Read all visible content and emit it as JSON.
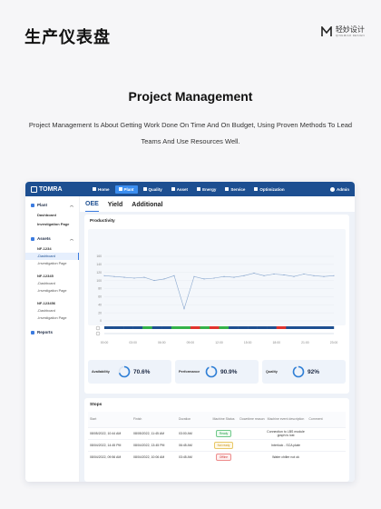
{
  "header": {
    "title": "生产仪表盘",
    "brand_cn": "轻妙设计",
    "brand_en": "QINGMIAO DESIGN"
  },
  "hero": {
    "heading": "Project Management",
    "description": "Project Management Is About Getting Work Done On Time And On Budget, Using Proven Methods To Lead Teams And Use Resources Well."
  },
  "app": {
    "logo": "TOMRA",
    "nav": [
      "Home",
      "Plant",
      "Quality",
      "Asset",
      "Energy",
      "Service",
      "Optimization"
    ],
    "active_nav": 1,
    "user": "Admin"
  },
  "sidebar": {
    "plant": {
      "label": "Plant",
      "items": [
        "Dashboard",
        "Investigation Page"
      ]
    },
    "assets": {
      "label": "Assets",
      "machines": [
        {
          "name": "NF-1234",
          "subs": [
            "-Dashboard",
            "-Investigation Page"
          ]
        },
        {
          "name": "NF-12345",
          "subs": [
            "-Dashboard",
            "-Investigation Page"
          ]
        },
        {
          "name": "NF-123456",
          "subs": [
            "-Dashboard",
            "-Investigation Page"
          ]
        }
      ]
    },
    "reports": {
      "label": "Reports"
    }
  },
  "tabs": [
    "OEE",
    "Yield",
    "Additional"
  ],
  "productivity": {
    "title": "Productivity",
    "y_ticks": [
      "160",
      "140",
      "120",
      "100",
      "80",
      "60",
      "40",
      "20",
      "0"
    ],
    "x_ticks": [
      "00:00",
      "03:00",
      "06:00",
      "09:00",
      "12:00",
      "15:00",
      "18:00",
      "21:00",
      "23:00"
    ]
  },
  "chart_data": {
    "type": "line",
    "title": "Productivity",
    "xlabel": "",
    "ylabel": "",
    "ylim": [
      0,
      160
    ],
    "x": [
      "00:00",
      "01:00",
      "02:00",
      "03:00",
      "04:00",
      "05:00",
      "06:00",
      "07:00",
      "08:00",
      "09:00",
      "10:00",
      "11:00",
      "12:00",
      "13:00",
      "14:00",
      "15:00",
      "16:00",
      "17:00",
      "18:00",
      "19:00",
      "20:00",
      "21:00",
      "22:00",
      "23:00"
    ],
    "series": [
      {
        "values": [
          112,
          110,
          108,
          106,
          108,
          100,
          104,
          112,
          30,
          110,
          104,
          106,
          110,
          108,
          112,
          118,
          112,
          116,
          114,
          110,
          116,
          112,
          110,
          112
        ]
      }
    ],
    "status_bar": [
      "blue",
      "blue",
      "blue",
      "blue",
      "green",
      "blue",
      "blue",
      "green",
      "green",
      "red",
      "green",
      "red",
      "green",
      "blue",
      "blue",
      "blue",
      "blue",
      "blue",
      "red",
      "blue",
      "blue",
      "blue",
      "blue",
      "blue"
    ]
  },
  "kpis": [
    {
      "label": "Availability",
      "value": "70.6%",
      "fraction": 0.706
    },
    {
      "label": "Performance",
      "value": "90.9%",
      "fraction": 0.909
    },
    {
      "label": "Quality",
      "value": "92%",
      "fraction": 0.92
    }
  ],
  "stops": {
    "title": "Stops",
    "columns": [
      "Start",
      "Finish",
      "Duration",
      "Machine Status",
      "Downtime reason",
      "Machine event description",
      "Comment"
    ],
    "rows": [
      {
        "start": "08/05/2022, 10:44 AM",
        "finish": "08/05/2022, 11:45 AM",
        "duration": "03:00 AM",
        "status": "Ready",
        "status_type": "ready",
        "reason": "",
        "description": "Connection to LBS module graph is lost",
        "comment": ""
      },
      {
        "start": "08/04/2022, 14:45 PM",
        "finish": "08/04/2022, 13:45 PM",
        "duration": "06:45 AM",
        "status": "Not ready",
        "status_type": "notready",
        "reason": "",
        "description": "Interlock - SCA plate",
        "comment": ""
      },
      {
        "start": "08/04/2022, 09:56 AM",
        "finish": "08/04/2022, 10:06 AM",
        "duration": "03:45 AM",
        "status": "Offline",
        "status_type": "offline",
        "reason": "",
        "description": "Water chiller not ok",
        "comment": ""
      }
    ]
  }
}
